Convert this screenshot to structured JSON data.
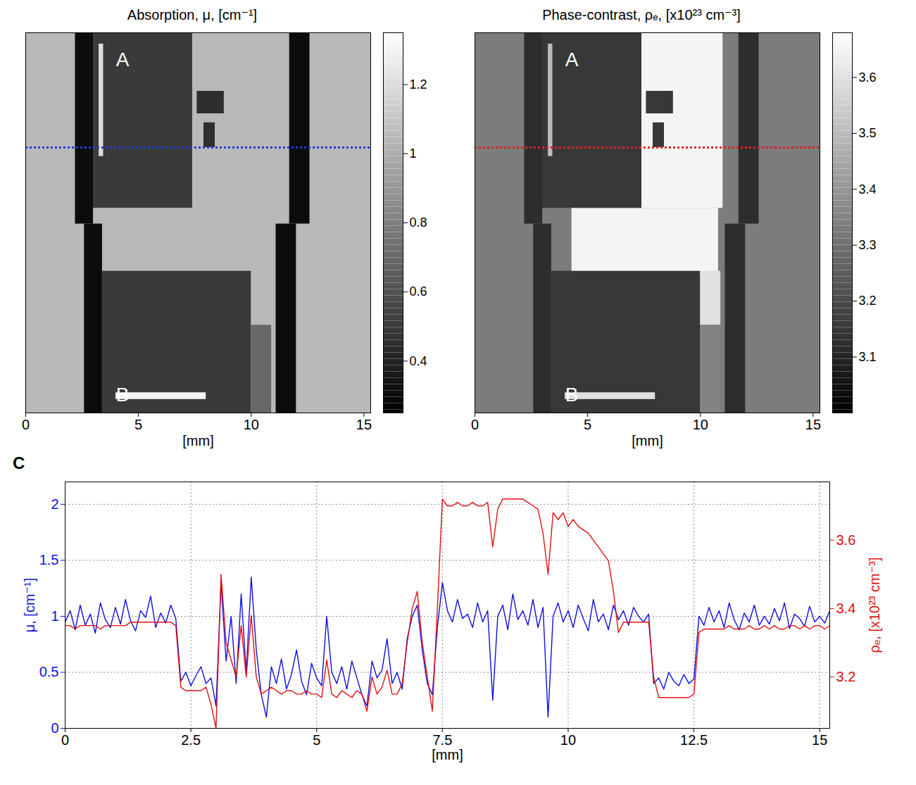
{
  "chart_data": [
    {
      "type": "heatmap",
      "title": "Absorption, μ, [cm⁻¹]",
      "xlabel": "[mm]",
      "xlim": [
        0,
        15.3
      ],
      "xticks": [
        0,
        5,
        10,
        15
      ],
      "ylim": [
        16.9,
        0
      ],
      "tick_labels": "x",
      "cells": [
        {
          "x1": 0,
          "x2": 15.3,
          "y1": 0,
          "y2": 16.9,
          "value": 1.05
        },
        {
          "x1": 3.0,
          "x2": 7.4,
          "y1": 0,
          "y2": 7.8,
          "value": 0.5
        },
        {
          "x1": 7.6,
          "x2": 8.8,
          "y1": 2.6,
          "y2": 3.6,
          "value": 0.45
        },
        {
          "x1": 7.9,
          "x2": 8.4,
          "y1": 4.0,
          "y2": 5.1,
          "value": 0.45
        },
        {
          "x1": 3.4,
          "x2": 10.0,
          "y1": 10.6,
          "y2": 16.9,
          "value": 0.5
        },
        {
          "x1": 10.0,
          "x2": 10.9,
          "y1": 13.0,
          "y2": 16.9,
          "value": 0.7
        },
        {
          "x1": 3.25,
          "x2": 3.45,
          "y1": 0.5,
          "y2": 5.5,
          "value": 1.2
        },
        {
          "x1": 4.0,
          "x2": 8.0,
          "y1": 16.0,
          "y2": 16.3,
          "value": 1.3
        },
        {
          "x1": 2.2,
          "x2": 3.0,
          "y1": 0,
          "y2": 8.5,
          "value": 0.3
        },
        {
          "x1": 2.6,
          "x2": 3.4,
          "y1": 8.5,
          "y2": 16.9,
          "value": 0.3
        },
        {
          "x1": 11.7,
          "x2": 12.6,
          "y1": 0,
          "y2": 8.5,
          "value": 0.3
        },
        {
          "x1": 11.1,
          "x2": 12.0,
          "y1": 8.5,
          "y2": 16.9,
          "value": 0.3
        }
      ],
      "colorbar": {
        "range": [
          0.25,
          1.35
        ],
        "ticks": [
          0.4,
          0.6,
          0.8,
          1,
          1.2
        ]
      },
      "annotations": [
        {
          "text": "A",
          "x": 4.3,
          "y": 1.2
        },
        {
          "text": "B",
          "x": 4.3,
          "y": 16.1
        }
      ],
      "lines": [
        {
          "y": 5.1,
          "color": "#1f3fd6",
          "line_style": "dotted"
        }
      ]
    },
    {
      "type": "heatmap",
      "title": "Phase-contrast, ρₑ, [x10²³ cm⁻³]",
      "xlabel": "[mm]",
      "xlim": [
        0,
        15.3
      ],
      "xticks": [
        0,
        5,
        10,
        15
      ],
      "ylim": [
        16.9,
        0
      ],
      "tick_labels": "x",
      "cells": [
        {
          "x1": 0,
          "x2": 15.3,
          "y1": 0,
          "y2": 16.9,
          "value": 3.33
        },
        {
          "x1": 7.4,
          "x2": 11.0,
          "y1": 0,
          "y2": 7.8,
          "value": 3.65
        },
        {
          "x1": 4.3,
          "x2": 10.8,
          "y1": 7.8,
          "y2": 10.8,
          "value": 3.65
        },
        {
          "x1": 3.0,
          "x2": 7.4,
          "y1": 0,
          "y2": 7.8,
          "value": 3.15
        },
        {
          "x1": 7.6,
          "x2": 8.8,
          "y1": 2.6,
          "y2": 3.6,
          "value": 3.15
        },
        {
          "x1": 7.9,
          "x2": 8.4,
          "y1": 4.0,
          "y2": 5.1,
          "value": 3.15
        },
        {
          "x1": 3.4,
          "x2": 10.0,
          "y1": 10.6,
          "y2": 16.9,
          "value": 3.15
        },
        {
          "x1": 10.0,
          "x2": 10.9,
          "y1": 10.6,
          "y2": 13.0,
          "value": 3.6
        },
        {
          "x1": 10.0,
          "x2": 10.9,
          "y1": 13.0,
          "y2": 16.9,
          "value": 3.35
        },
        {
          "x1": 3.25,
          "x2": 3.45,
          "y1": 0.5,
          "y2": 5.5,
          "value": 3.5
        },
        {
          "x1": 4.0,
          "x2": 8.0,
          "y1": 16.0,
          "y2": 16.3,
          "value": 3.6
        },
        {
          "x1": 2.2,
          "x2": 3.0,
          "y1": 0,
          "y2": 8.5,
          "value": 3.12
        },
        {
          "x1": 2.6,
          "x2": 3.4,
          "y1": 8.5,
          "y2": 16.9,
          "value": 3.12
        },
        {
          "x1": 11.7,
          "x2": 12.6,
          "y1": 0,
          "y2": 8.5,
          "value": 3.12
        },
        {
          "x1": 11.1,
          "x2": 12.0,
          "y1": 8.5,
          "y2": 16.9,
          "value": 3.12
        }
      ],
      "colorbar": {
        "range": [
          3.0,
          3.68
        ],
        "ticks": [
          3.1,
          3.2,
          3.3,
          3.4,
          3.5,
          3.6
        ]
      },
      "annotations": [
        {
          "text": "A",
          "x": 4.3,
          "y": 1.2
        },
        {
          "text": "B",
          "x": 4.3,
          "y": 16.1
        }
      ],
      "lines": [
        {
          "y": 5.1,
          "color": "#e02020",
          "line_style": "dotted"
        }
      ]
    },
    {
      "type": "line",
      "panel_label": "C",
      "xlabel": "[mm]",
      "ylabel": "μ, [cm⁻¹]",
      "y2label": "ρₑ, [x10²³ cm⁻³]",
      "xlim": [
        0,
        15.2
      ],
      "xticks": [
        0,
        2.5,
        5,
        7.5,
        10,
        12.5,
        15
      ],
      "ylim": [
        0,
        2.2
      ],
      "yticks": [
        0,
        0.5,
        1,
        1.5,
        2
      ],
      "y2lim": [
        3.05,
        3.77
      ],
      "y2ticks": [
        3.2,
        3.4,
        3.6
      ],
      "grid": true,
      "x": [
        0,
        0.1,
        0.2,
        0.3,
        0.4,
        0.5,
        0.6,
        0.7,
        0.8,
        0.9,
        1,
        1.1,
        1.2,
        1.3,
        1.4,
        1.5,
        1.6,
        1.7,
        1.8,
        1.9,
        2,
        2.1,
        2.2,
        2.3,
        2.4,
        2.5,
        2.6,
        2.7,
        2.8,
        2.9,
        3,
        3.1,
        3.2,
        3.3,
        3.4,
        3.5,
        3.6,
        3.7,
        3.8,
        3.9,
        4,
        4.1,
        4.2,
        4.3,
        4.4,
        4.5,
        4.6,
        4.7,
        4.8,
        4.9,
        5,
        5.1,
        5.2,
        5.3,
        5.4,
        5.5,
        5.6,
        5.7,
        5.8,
        5.9,
        6,
        6.1,
        6.2,
        6.3,
        6.4,
        6.5,
        6.6,
        6.7,
        6.8,
        6.9,
        7,
        7.1,
        7.2,
        7.3,
        7.4,
        7.5,
        7.6,
        7.7,
        7.8,
        7.9,
        8,
        8.1,
        8.2,
        8.3,
        8.4,
        8.5,
        8.6,
        8.7,
        8.8,
        8.9,
        9,
        9.1,
        9.2,
        9.3,
        9.4,
        9.5,
        9.6,
        9.7,
        9.8,
        9.9,
        10,
        10.1,
        10.2,
        10.3,
        10.4,
        10.5,
        10.6,
        10.7,
        10.8,
        10.9,
        11,
        11.1,
        11.2,
        11.3,
        11.4,
        11.5,
        11.6,
        11.7,
        11.8,
        11.9,
        12,
        12.1,
        12.2,
        12.3,
        12.4,
        12.5,
        12.6,
        12.7,
        12.8,
        12.9,
        13,
        13.1,
        13.2,
        13.3,
        13.4,
        13.5,
        13.6,
        13.7,
        13.8,
        13.9,
        14,
        14.1,
        14.2,
        14.3,
        14.4,
        14.5,
        14.6,
        14.7,
        14.8,
        14.9,
        15,
        15.1,
        15.2
      ],
      "series": [
        {
          "color": "#1010e0",
          "axis": "y",
          "values": [
            0.95,
            1.05,
            0.88,
            1.1,
            0.92,
            1.02,
            0.85,
            1.12,
            0.97,
            0.9,
            1.08,
            0.93,
            1.15,
            0.96,
            0.87,
            1.05,
            0.99,
            1.18,
            0.9,
            1.03,
            0.94,
            1.1,
            0.98,
            0.42,
            0.5,
            0.38,
            0.47,
            0.55,
            0.4,
            0.45,
            0.2,
            1.3,
            0.6,
            1.0,
            0.4,
            1.2,
            0.5,
            1.35,
            0.7,
            0.3,
            0.1,
            0.55,
            0.4,
            0.62,
            0.35,
            0.48,
            0.7,
            0.42,
            0.3,
            0.58,
            0.45,
            0.38,
            1.0,
            0.5,
            0.4,
            0.55,
            0.35,
            0.6,
            0.45,
            0.3,
            0.2,
            0.6,
            0.45,
            0.52,
            0.8,
            0.4,
            0.5,
            0.35,
            0.8,
            1.0,
            1.1,
            0.7,
            0.4,
            0.3,
            0.9,
            1.3,
            1.05,
            0.95,
            1.15,
            0.98,
            1.02,
            0.9,
            1.12,
            0.95,
            1.05,
            0.25,
            1.0,
            1.1,
            0.88,
            1.2,
            0.97,
            1.05,
            0.92,
            1.15,
            0.9,
            1.08,
            0.1,
            1.0,
            1.12,
            0.95,
            1.05,
            0.9,
            1.1,
            0.98,
            0.87,
            1.15,
            0.95,
            1.02,
            0.88,
            1.1,
            0.97,
            1.05,
            0.92,
            1.08,
            1.0,
            0.95,
            1.02,
            0.4,
            0.45,
            0.35,
            0.5,
            0.42,
            0.38,
            0.48,
            0.4,
            0.44,
            1.0,
            0.92,
            1.08,
            0.95,
            1.05,
            0.9,
            1.12,
            0.97,
            0.88,
            1.03,
            0.95,
            1.1,
            0.92,
            1.0,
            0.93,
            1.07,
            0.96,
            1.12,
            0.89,
            1.02,
            0.98,
            0.91,
            1.09,
            0.95,
            1.0,
            0.94,
            1.05
          ]
        },
        {
          "color": "#e01010",
          "axis": "y2",
          "values": [
            3.35,
            3.35,
            3.34,
            3.35,
            3.35,
            3.35,
            3.35,
            3.34,
            3.35,
            3.35,
            3.35,
            3.35,
            3.35,
            3.36,
            3.36,
            3.36,
            3.36,
            3.36,
            3.36,
            3.36,
            3.36,
            3.36,
            3.35,
            3.17,
            3.16,
            3.16,
            3.16,
            3.16,
            3.17,
            3.12,
            3.05,
            3.5,
            3.3,
            3.25,
            3.2,
            3.35,
            3.2,
            3.38,
            3.2,
            3.15,
            3.16,
            3.17,
            3.16,
            3.15,
            3.16,
            3.16,
            3.15,
            3.15,
            3.16,
            3.15,
            3.15,
            3.14,
            3.25,
            3.15,
            3.14,
            3.16,
            3.15,
            3.14,
            3.16,
            3.15,
            3.1,
            3.2,
            3.15,
            3.17,
            3.22,
            3.15,
            3.15,
            3.18,
            3.3,
            3.4,
            3.45,
            3.3,
            3.2,
            3.1,
            3.4,
            3.72,
            3.7,
            3.7,
            3.71,
            3.7,
            3.7,
            3.71,
            3.7,
            3.7,
            3.71,
            3.58,
            3.69,
            3.72,
            3.72,
            3.72,
            3.72,
            3.72,
            3.71,
            3.7,
            3.69,
            3.62,
            3.5,
            3.68,
            3.66,
            3.68,
            3.64,
            3.66,
            3.64,
            3.63,
            3.62,
            3.6,
            3.58,
            3.56,
            3.54,
            3.45,
            3.33,
            3.36,
            3.36,
            3.36,
            3.36,
            3.36,
            3.36,
            3.2,
            3.14,
            3.14,
            3.14,
            3.14,
            3.14,
            3.14,
            3.14,
            3.15,
            3.33,
            3.34,
            3.34,
            3.34,
            3.34,
            3.34,
            3.35,
            3.34,
            3.34,
            3.34,
            3.35,
            3.34,
            3.34,
            3.35,
            3.34,
            3.35,
            3.34,
            3.34,
            3.35,
            3.35,
            3.34,
            3.35,
            3.34,
            3.35,
            3.35,
            3.34,
            3.35
          ]
        }
      ]
    }
  ]
}
